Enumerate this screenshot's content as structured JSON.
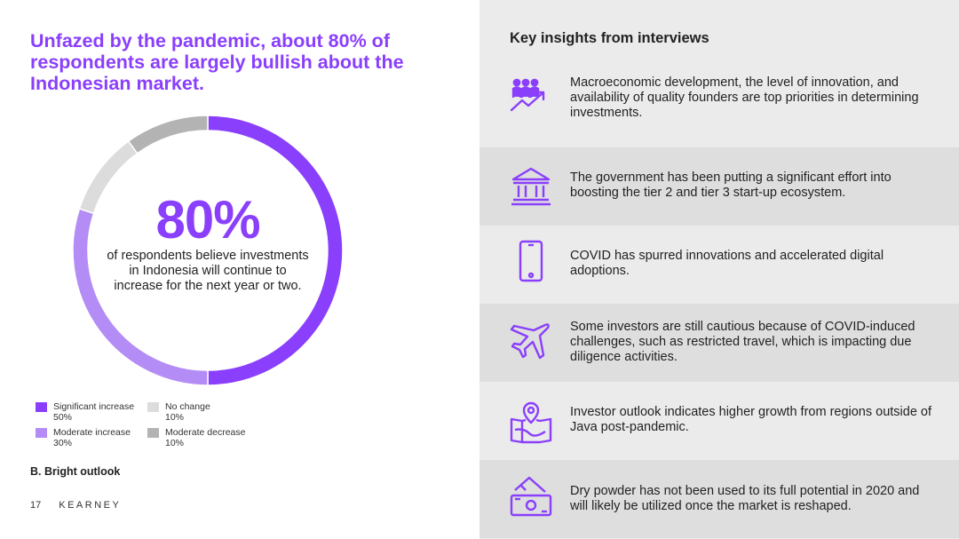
{
  "headline": "Unfazed by the pandemic, about 80% of respondents are largely bullish about the Indonesian market.",
  "donut": {
    "big_value": "80%",
    "caption": "of respondents believe investments in Indonesia will continue to increase for the next year or two."
  },
  "chart_data": {
    "type": "pie",
    "donut": true,
    "categories": [
      "Significant increase",
      "Moderate increase",
      "No change",
      "Moderate decrease"
    ],
    "values": [
      50,
      30,
      10,
      10
    ],
    "value_labels": [
      "50%",
      "30%",
      "10%",
      "10%"
    ],
    "colors": [
      "#8a3ffc",
      "#b48cf5",
      "#dcdcdc",
      "#b3b3b3"
    ],
    "legend_placement": "bottom"
  },
  "section_label": "B. Bright outlook",
  "footer": {
    "page_number": "17",
    "brand": "KEARNEY"
  },
  "insights_title": "Key insights from interviews",
  "insights": [
    {
      "icon": "people-growth-icon",
      "text": "Macroeconomic development, the level of innovation, and availability of quality founders are top priorities in determining investments."
    },
    {
      "icon": "government-building-icon",
      "text": "The government has been putting a significant effort into boosting the tier 2 and tier 3 start-up ecosystem."
    },
    {
      "icon": "smartphone-icon",
      "text": "COVID has spurred innovations and accelerated digital adoptions."
    },
    {
      "icon": "airplane-icon",
      "text": "Some investors are still cautious because of COVID-induced challenges, such as restricted travel, which is impacting due diligence activities."
    },
    {
      "icon": "map-pin-icon",
      "text": "Investor outlook indicates higher growth from regions outside of Java post-pandemic."
    },
    {
      "icon": "money-icon",
      "text": "Dry powder has not been used to its full potential in 2020 and will likely be utilized once the market is reshaped."
    }
  ],
  "accent_color": "#8a3ffc"
}
